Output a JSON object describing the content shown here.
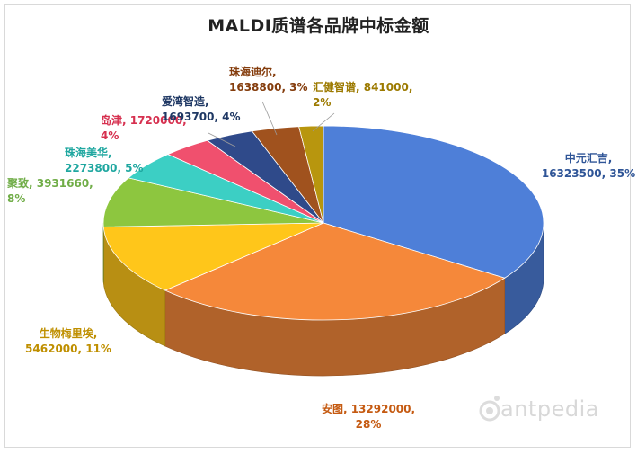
{
  "chart_data": {
    "type": "pie",
    "title": "MALDI质谱各品牌中标金额",
    "slices": [
      {
        "name": "中元汇吉",
        "value": 16323500,
        "percent": "35%",
        "color": "#4E7FD8",
        "label_lines": [
          "中元汇吉,",
          "16323500, 35%"
        ],
        "label_color": "#2F5597"
      },
      {
        "name": "安图",
        "value": 13292000,
        "percent": "28%",
        "color": "#F5883A",
        "label_lines": [
          "安图, 13292000,",
          "28%"
        ],
        "label_color": "#C55A11"
      },
      {
        "name": "生物梅里埃",
        "value": 5462000,
        "percent": "11%",
        "color": "#FFC61A",
        "label_lines": [
          "生物梅里埃,",
          "5462000, 11%"
        ],
        "label_color": "#BF8F00"
      },
      {
        "name": "聚致",
        "value": 3931660,
        "percent": "8%",
        "color": "#8DC63F",
        "label_lines": [
          "聚致, 3931660,",
          "8%"
        ],
        "label_color": "#70AD47"
      },
      {
        "name": "珠海美华",
        "value": 2273800,
        "percent": "5%",
        "color": "#3CCFC4",
        "label_lines": [
          "珠海美华,",
          "2273800, 5%"
        ],
        "label_color": "#1FA7A0"
      },
      {
        "name": "岛津",
        "value": 1720000,
        "percent": "4%",
        "color": "#F0506E",
        "label_lines": [
          "岛津, 1720000,",
          "4%"
        ],
        "label_color": "#D6304F"
      },
      {
        "name": "爱湾智造",
        "value": 1693700,
        "percent": "4%",
        "color": "#2F4A8A",
        "label_lines": [
          "爱湾智造,",
          "1693700, 4%"
        ],
        "label_color": "#1F3864"
      },
      {
        "name": "珠海迪尔",
        "value": 1638800,
        "percent": "3%",
        "color": "#A0521E",
        "label_lines": [
          "珠海迪尔,",
          "1638800, 3%"
        ],
        "label_color": "#843C0C"
      },
      {
        "name": "汇健智谱",
        "value": 841000,
        "percent": "2%",
        "color": "#B8960E",
        "label_lines": [
          "汇健智谱, 841000,",
          "2%"
        ],
        "label_color": "#9C7A00"
      }
    ],
    "legend": "none"
  },
  "watermark": {
    "text": "antpedia"
  }
}
